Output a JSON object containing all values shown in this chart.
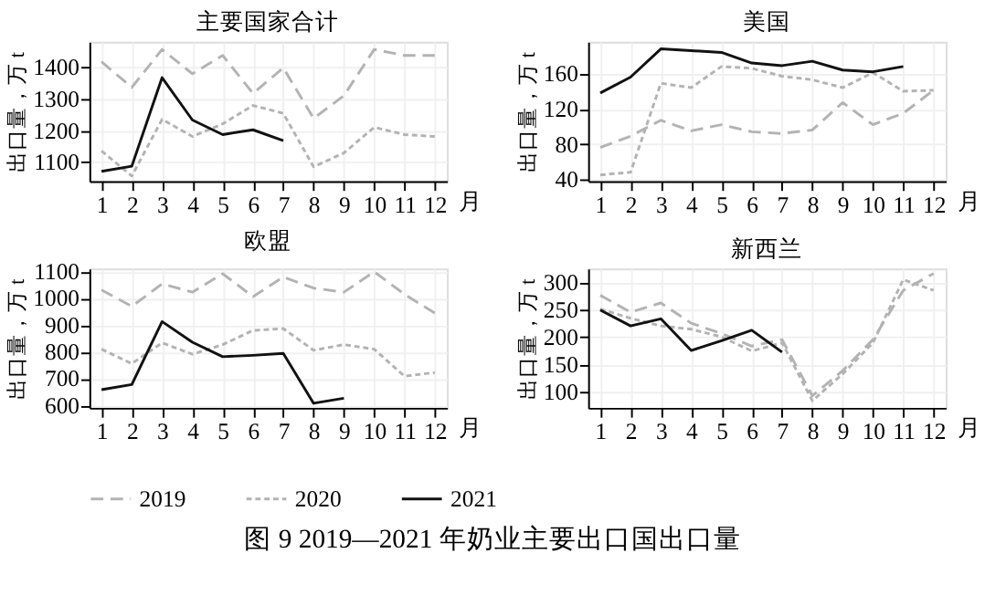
{
  "chart_data": [
    {
      "type": "line",
      "title": "主要国家合计",
      "xlabel": "月",
      "ylabel": "出口量，万 t",
      "x": [
        1,
        2,
        3,
        4,
        5,
        6,
        7,
        8,
        9,
        10,
        11,
        12
      ],
      "xlim": [
        0.6,
        12.4
      ],
      "xticks": [
        1,
        2,
        3,
        4,
        5,
        6,
        7,
        8,
        9,
        10,
        11,
        12
      ],
      "ylim": [
        1040,
        1480
      ],
      "yticks": [
        1100,
        1200,
        1300,
        1400
      ],
      "grid": true,
      "legend": "bottom",
      "series": [
        {
          "name": "2019",
          "color": "#b3b3b3",
          "line_style": "dashed",
          "values": [
            1417,
            1336,
            1456,
            1379,
            1437,
            1317,
            1398,
            1238,
            1310,
            1456,
            1437,
            1437
          ]
        },
        {
          "name": "2020",
          "color": "#b3b3b3",
          "line_style": "dotted",
          "values": [
            1135,
            1056,
            1235,
            1181,
            1221,
            1279,
            1254,
            1085,
            1129,
            1210,
            1187,
            1181
          ]
        },
        {
          "name": "2021",
          "color": "#111111",
          "line_style": "solid",
          "values": [
            1071,
            1087,
            1367,
            1233,
            1187,
            1202,
            1168,
            null,
            null,
            null,
            null,
            null
          ]
        }
      ]
    },
    {
      "type": "line",
      "title": "美国",
      "xlabel": "月",
      "ylabel": "出口量，万 t",
      "x": [
        1,
        2,
        3,
        4,
        5,
        6,
        7,
        8,
        9,
        10,
        11,
        12
      ],
      "xlim": [
        0.6,
        12.4
      ],
      "xticks": [
        1,
        2,
        3,
        4,
        5,
        6,
        7,
        8,
        9,
        10,
        11,
        12
      ],
      "ylim": [
        38,
        196
      ],
      "yticks": [
        40,
        80,
        120,
        160
      ],
      "grid": true,
      "legend": "bottom",
      "series": [
        {
          "name": "2019",
          "color": "#b3b3b3",
          "line_style": "dashed",
          "values": [
            76,
            89,
            107,
            95,
            102,
            94,
            92,
            96,
            127,
            102,
            115,
            141
          ]
        },
        {
          "name": "2020",
          "color": "#b3b3b3",
          "line_style": "dotted",
          "values": [
            45,
            48,
            149,
            144,
            168,
            166,
            157,
            153,
            144,
            161,
            140,
            141
          ]
        },
        {
          "name": "2021",
          "color": "#111111",
          "line_style": "solid",
          "values": [
            138,
            156,
            188,
            186,
            184,
            172,
            169,
            174,
            164,
            162,
            168,
            null
          ]
        }
      ]
    },
    {
      "type": "line",
      "title": "欧盟",
      "xlabel": "月",
      "ylabel": "出口量，万 t",
      "x": [
        1,
        2,
        3,
        4,
        5,
        6,
        7,
        8,
        9,
        10,
        11,
        12
      ],
      "xlim": [
        0.6,
        12.4
      ],
      "xticks": [
        1,
        2,
        3,
        4,
        5,
        6,
        7,
        8,
        9,
        10,
        11,
        12
      ],
      "ylim": [
        590,
        1110
      ],
      "yticks": [
        600,
        700,
        800,
        900,
        1000,
        1100
      ],
      "grid": true,
      "legend": "bottom",
      "series": [
        {
          "name": "2019",
          "color": "#b3b3b3",
          "line_style": "dashed",
          "values": [
            1030,
            969,
            1053,
            1022,
            1091,
            1005,
            1079,
            1037,
            1022,
            1098,
            1014,
            944
          ]
        },
        {
          "name": "2020",
          "color": "#b3b3b3",
          "line_style": "dotted",
          "values": [
            809,
            755,
            833,
            790,
            826,
            879,
            886,
            805,
            826,
            809,
            708,
            722
          ]
        },
        {
          "name": "2021",
          "color": "#111111",
          "line_style": "solid",
          "values": [
            658,
            677,
            912,
            835,
            781,
            786,
            793,
            607,
            626,
            null,
            null,
            null
          ]
        }
      ]
    },
    {
      "type": "line",
      "title": "新西兰",
      "xlabel": "月",
      "ylabel": "出口量，万 t",
      "x": [
        1,
        2,
        3,
        4,
        5,
        6,
        7,
        8,
        9,
        10,
        11,
        12
      ],
      "xlim": [
        0.6,
        12.4
      ],
      "xticks": [
        1,
        2,
        3,
        4,
        5,
        6,
        7,
        8,
        9,
        10,
        11,
        12
      ],
      "ylim": [
        70,
        325
      ],
      "yticks": [
        100,
        150,
        200,
        250,
        300
      ],
      "grid": true,
      "legend": "bottom",
      "annotations": [
        "图 9 2019—2021 年奶业主要出口国出口量"
      ],
      "series": [
        {
          "name": "2019",
          "color": "#b3b3b3",
          "line_style": "dashed",
          "values": [
            276,
            245,
            262,
            225,
            206,
            183,
            195,
            92,
            138,
            195,
            285,
            316
          ]
        },
        {
          "name": "2020",
          "color": "#b3b3b3",
          "line_style": "dotted",
          "values": [
            251,
            234,
            220,
            214,
            200,
            174,
            189,
            83,
            132,
            189,
            305,
            285
          ]
        },
        {
          "name": "2021",
          "color": "#111111",
          "line_style": "solid",
          "values": [
            249,
            220,
            233,
            175,
            193,
            212,
            172,
            null,
            null,
            null,
            null,
            null
          ]
        }
      ]
    }
  ]
}
